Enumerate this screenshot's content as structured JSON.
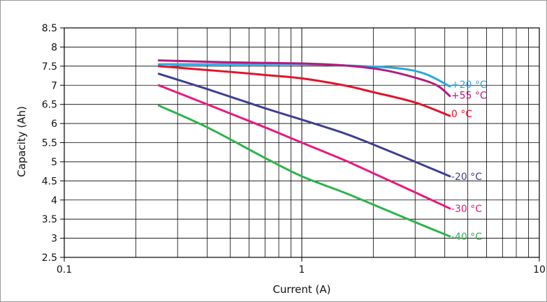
{
  "chart_data": {
    "type": "line",
    "xlabel": "Current (A)",
    "ylabel": "Capacity (Ah)",
    "x_scale": "log",
    "xlim": [
      0.1,
      10
    ],
    "ylim": [
      2.5,
      8.5
    ],
    "x_tick_labels": [
      "0.1",
      "1",
      "10"
    ],
    "y_ticks": [
      2.5,
      3,
      3.5,
      4,
      4.5,
      5,
      5.5,
      6,
      6.5,
      7,
      7.5,
      8,
      8.5
    ],
    "y_tick_labels": [
      "2.5",
      "3",
      "3.5",
      "4",
      "4.5",
      "5",
      "5.5",
      "6",
      "6.5",
      "7",
      "7.5",
      "8",
      "8.5"
    ],
    "grid": true,
    "series": [
      {
        "name": "+20 °C",
        "color": "#29a8e0",
        "points": [
          [
            0.25,
            7.55
          ],
          [
            0.4,
            7.55
          ],
          [
            0.7,
            7.55
          ],
          [
            1.0,
            7.55
          ],
          [
            1.5,
            7.52
          ],
          [
            2.5,
            7.45
          ],
          [
            3.3,
            7.3
          ],
          [
            4.2,
            6.97
          ]
        ]
      },
      {
        "name": "+55 °C",
        "color": "#b5197e",
        "points": [
          [
            0.25,
            7.65
          ],
          [
            0.5,
            7.6
          ],
          [
            1.0,
            7.57
          ],
          [
            1.5,
            7.52
          ],
          [
            2.2,
            7.4
          ],
          [
            3.0,
            7.2
          ],
          [
            3.7,
            7.0
          ],
          [
            4.2,
            6.72
          ]
        ]
      },
      {
        "name": "0 °C",
        "color": "#e0142b",
        "points": [
          [
            0.25,
            7.5
          ],
          [
            0.5,
            7.35
          ],
          [
            0.7,
            7.27
          ],
          [
            1.0,
            7.18
          ],
          [
            1.5,
            7.0
          ],
          [
            2.0,
            6.82
          ],
          [
            3.0,
            6.55
          ],
          [
            4.2,
            6.2
          ]
        ]
      },
      {
        "name": "-20 °C",
        "color": "#3e3f8f",
        "points": [
          [
            0.25,
            7.3
          ],
          [
            0.4,
            6.9
          ],
          [
            0.7,
            6.4
          ],
          [
            1.0,
            6.1
          ],
          [
            1.5,
            5.75
          ],
          [
            2.0,
            5.45
          ],
          [
            3.0,
            5.0
          ],
          [
            4.2,
            4.62
          ]
        ]
      },
      {
        "name": "-30 °C",
        "color": "#e6197d",
        "points": [
          [
            0.25,
            7.0
          ],
          [
            0.4,
            6.5
          ],
          [
            0.7,
            5.9
          ],
          [
            1.0,
            5.5
          ],
          [
            1.5,
            5.05
          ],
          [
            2.0,
            4.7
          ],
          [
            3.0,
            4.2
          ],
          [
            4.2,
            3.78
          ]
        ]
      },
      {
        "name": "-40 °C",
        "color": "#2db34a",
        "points": [
          [
            0.25,
            6.47
          ],
          [
            0.4,
            5.9
          ],
          [
            0.7,
            5.1
          ],
          [
            1.0,
            4.62
          ],
          [
            1.5,
            4.2
          ],
          [
            2.0,
            3.88
          ],
          [
            3.0,
            3.42
          ],
          [
            4.2,
            3.05
          ]
        ]
      }
    ]
  }
}
